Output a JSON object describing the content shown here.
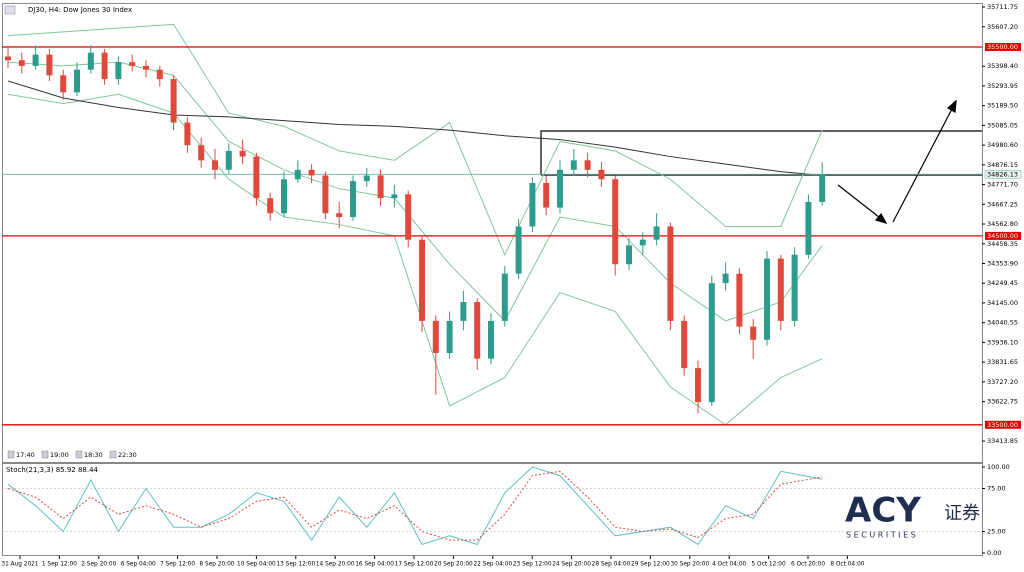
{
  "chart_data": [
    {
      "type": "candlestick",
      "title": "DJ30, H4: Dow Jones 30 Index",
      "up_color": "#2e9c8c",
      "down_color": "#e0483c",
      "open": [
        35450,
        35430,
        35400,
        35460,
        35350,
        35260,
        35380,
        35470,
        35330,
        35420,
        35400,
        35380,
        35330,
        35100,
        34980,
        34900,
        34850,
        34950,
        34920,
        34700,
        34620,
        34800,
        34850,
        34820,
        34620,
        34600,
        34790,
        34820,
        34700,
        34720,
        34480,
        34050,
        33880,
        34050,
        34150,
        33850,
        34050,
        34300,
        34550,
        34780,
        34650,
        34850,
        34900,
        34850,
        34800,
        34350,
        34450,
        34480,
        34550,
        34050,
        33800,
        33620,
        34250,
        34300,
        34020,
        33950,
        34380,
        34050,
        34400,
        34680
      ],
      "high": [
        35500,
        35470,
        35510,
        35490,
        35380,
        35420,
        35510,
        35490,
        35450,
        35460,
        35430,
        35400,
        35350,
        35130,
        35020,
        34960,
        34990,
        35010,
        34940,
        34730,
        34840,
        34900,
        34880,
        34840,
        34680,
        34820,
        34860,
        34850,
        34770,
        34740,
        34500,
        34080,
        34100,
        34210,
        34170,
        34090,
        34340,
        34590,
        34810,
        34820,
        34900,
        34960,
        34940,
        34890,
        34820,
        34490,
        34520,
        34620,
        34570,
        34080,
        33840,
        34290,
        34360,
        34330,
        34060,
        34420,
        34400,
        34440,
        34720,
        34890
      ],
      "low": [
        35390,
        35360,
        35380,
        35320,
        35220,
        35240,
        35360,
        35300,
        35300,
        35370,
        35340,
        35290,
        35060,
        34940,
        34860,
        34800,
        34830,
        34880,
        34660,
        34580,
        34600,
        34780,
        34780,
        34590,
        34540,
        34580,
        34760,
        34660,
        34650,
        34440,
        33990,
        33660,
        33850,
        34000,
        33790,
        33820,
        34020,
        34270,
        34520,
        34610,
        34620,
        34820,
        34810,
        34760,
        34290,
        34320,
        34400,
        34450,
        34000,
        33760,
        33560,
        33600,
        34210,
        33980,
        33850,
        33920,
        34000,
        34020,
        34380,
        34660
      ],
      "close": [
        35430,
        35400,
        35460,
        35350,
        35260,
        35380,
        35470,
        35330,
        35420,
        35400,
        35380,
        35330,
        35100,
        34980,
        34900,
        34850,
        34950,
        34920,
        34700,
        34620,
        34800,
        34850,
        34820,
        34620,
        34600,
        34790,
        34820,
        34700,
        34720,
        34480,
        34050,
        33880,
        34050,
        34150,
        33850,
        34050,
        34300,
        34550,
        34780,
        34650,
        34850,
        34900,
        34850,
        34800,
        34350,
        34450,
        34480,
        34550,
        34050,
        33800,
        33620,
        34250,
        34300,
        34020,
        33950,
        34380,
        34050,
        34400,
        34680,
        34826.13
      ],
      "indicator_x": [
        0,
        4,
        8,
        12,
        16,
        20,
        24,
        28,
        32,
        36,
        40,
        44,
        48,
        52,
        56,
        59
      ],
      "series": [
        {
          "name": "BB upper",
          "color": "#7fc79a",
          "values": [
            35560,
            35580,
            35600,
            35620,
            35150,
            35080,
            34950,
            34900,
            35100,
            34400,
            35000,
            34950,
            34800,
            34550,
            34550,
            35060
          ]
        },
        {
          "name": "BB middle",
          "color": "#7fc79a",
          "values": [
            35420,
            35400,
            35420,
            35350,
            35000,
            34850,
            34750,
            34700,
            34350,
            34050,
            34600,
            34550,
            34250,
            34050,
            34150,
            34450
          ]
        },
        {
          "name": "BB lower",
          "color": "#7fc79a",
          "values": [
            35250,
            35200,
            35250,
            35150,
            34800,
            34600,
            34560,
            34500,
            33600,
            33750,
            34200,
            34100,
            33700,
            33500,
            33750,
            33850
          ]
        },
        {
          "name": "MA",
          "color": "#333333",
          "values": [
            35320,
            35230,
            35180,
            35140,
            35130,
            35110,
            35090,
            35080,
            35060,
            35030,
            35010,
            34970,
            34920,
            34880,
            34840,
            34820
          ]
        }
      ],
      "levels": [
        {
          "value": 35500,
          "label": "35500.00",
          "color": "#e00000"
        },
        {
          "value": 34500,
          "label": "34500.00",
          "color": "#e00000"
        },
        {
          "value": 33500,
          "label": "33500.00",
          "color": "#e00000"
        }
      ],
      "last": 34826.13,
      "last_color": "#5fb8a8",
      "ylim": [
        33303,
        35733
      ],
      "yticks": [
        35711.75,
        {
          "value": 35607.2,
          "label": "35607.20"
        },
        {
          "value": 35398.4,
          "label": "35398.40"
        },
        35293.95,
        {
          "value": 35189.5,
          "label": "35189.50"
        },
        35085.05,
        {
          "value": 34980.6,
          "label": "34980.60"
        },
        34876.15,
        {
          "value": 34771.7,
          "label": "34771.70"
        },
        34667.25,
        {
          "value": 34562.8,
          "label": "34562.80"
        },
        34458.35,
        {
          "value": 34353.9,
          "label": "34353.90"
        },
        34249.45,
        {
          "value": 34145,
          "label": "34145.00"
        },
        34040.55,
        {
          "value": 33936.1,
          "label": "33936.10"
        },
        33831.65,
        {
          "value": 33727.2,
          "label": "33727.20"
        },
        33622.75,
        33413.85
      ],
      "session_tags": [
        "17:40",
        "19:00",
        "18:30",
        "22:30"
      ],
      "x_labels": [
        "31 Aug 2021",
        "1 Sep 12:00",
        "2 Sep 20:00",
        "6 Sep 04:00",
        "7 Sep 12:00",
        "8 Sep 20:00",
        "10 Sep 04:00",
        "13 Sep 12:00",
        "14 Sep 20:00",
        "16 Sep 04:00",
        "17 Sep 12:00",
        "20 Sep 20:00",
        "22 Sep 04:00",
        "23 Sep 12:00",
        "24 Sep 20:00",
        "28 Sep 04:00",
        "29 Sep 12:00",
        "30 Sep 20:00",
        "4 Oct 04:00",
        "5 Oct 12:00",
        "6 Oct 20:00",
        "8 Oct 04:00"
      ]
    },
    {
      "type": "line",
      "title": "Stoch(21,3,3) 85.92 88.44",
      "x": [
        0,
        2,
        4,
        6,
        8,
        10,
        12,
        14,
        16,
        18,
        20,
        22,
        24,
        26,
        28,
        30,
        32,
        34,
        36,
        38,
        40,
        42,
        44,
        46,
        48,
        50,
        52,
        54,
        56,
        59
      ],
      "series": [
        {
          "name": "Main",
          "color": "#5fc0c8",
          "dash": false,
          "values": [
            80,
            55,
            25,
            85,
            25,
            75,
            30,
            30,
            45,
            70,
            60,
            15,
            65,
            30,
            70,
            10,
            20,
            10,
            70,
            100,
            90,
            55,
            20,
            25,
            30,
            10,
            55,
            40,
            95,
            85.92
          ]
        },
        {
          "name": "Signal",
          "color": "#e0483c",
          "dash": true,
          "values": [
            75,
            65,
            40,
            65,
            45,
            55,
            45,
            30,
            40,
            60,
            65,
            30,
            50,
            40,
            55,
            25,
            15,
            15,
            45,
            90,
            95,
            65,
            30,
            25,
            28,
            18,
            40,
            45,
            80,
            88.44
          ]
        }
      ],
      "ylim": [
        0,
        100
      ],
      "yticks": [
        {
          "value": 100,
          "label": "100.00"
        },
        {
          "value": 75,
          "label": "75.00"
        },
        {
          "value": 25,
          "label": "25.00"
        },
        {
          "value": 0,
          "label": "0.00"
        }
      ]
    }
  ],
  "logo": {
    "brand": "ACY",
    "cn": "证券",
    "sub": "S E C U R I T I E S"
  }
}
